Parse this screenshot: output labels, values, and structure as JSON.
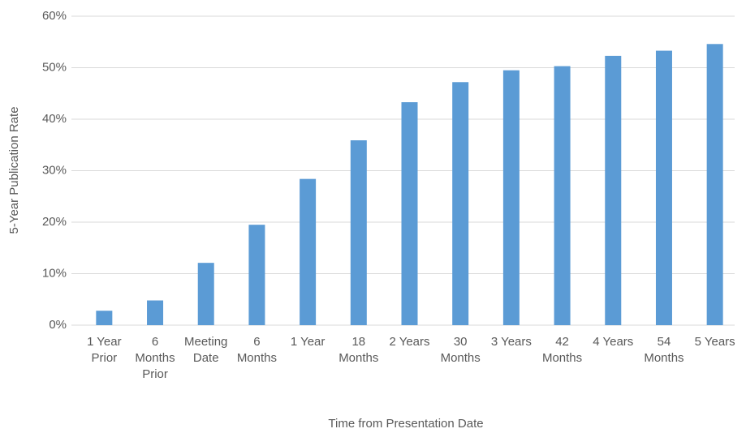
{
  "chart_data": {
    "type": "bar",
    "categories": [
      "1 Year Prior",
      "6 Months Prior",
      "Meeting Date",
      "6 Months",
      "1 Year",
      "18 Months",
      "2 Years",
      "30 Months",
      "3 Years",
      "42 Months",
      "4 Years",
      "54 Months",
      "5 Years"
    ],
    "values": [
      2.8,
      4.8,
      12.1,
      19.5,
      28.4,
      35.9,
      43.3,
      47.2,
      49.5,
      50.3,
      52.3,
      53.3,
      54.6
    ],
    "color": "#5b9bd5",
    "x_label": "Time from Presentation Date",
    "y_label": "5-Year Publication Rate",
    "ylim": [
      0,
      60
    ],
    "yticks": [
      {
        "value": 0,
        "label": "0%"
      },
      {
        "value": 10,
        "label": "10%"
      },
      {
        "value": 20,
        "label": "20%"
      },
      {
        "value": 30,
        "label": "30%"
      },
      {
        "value": 40,
        "label": "40%"
      },
      {
        "value": 50,
        "label": "50%"
      },
      {
        "value": 60,
        "label": "60%"
      }
    ],
    "grid": true
  }
}
